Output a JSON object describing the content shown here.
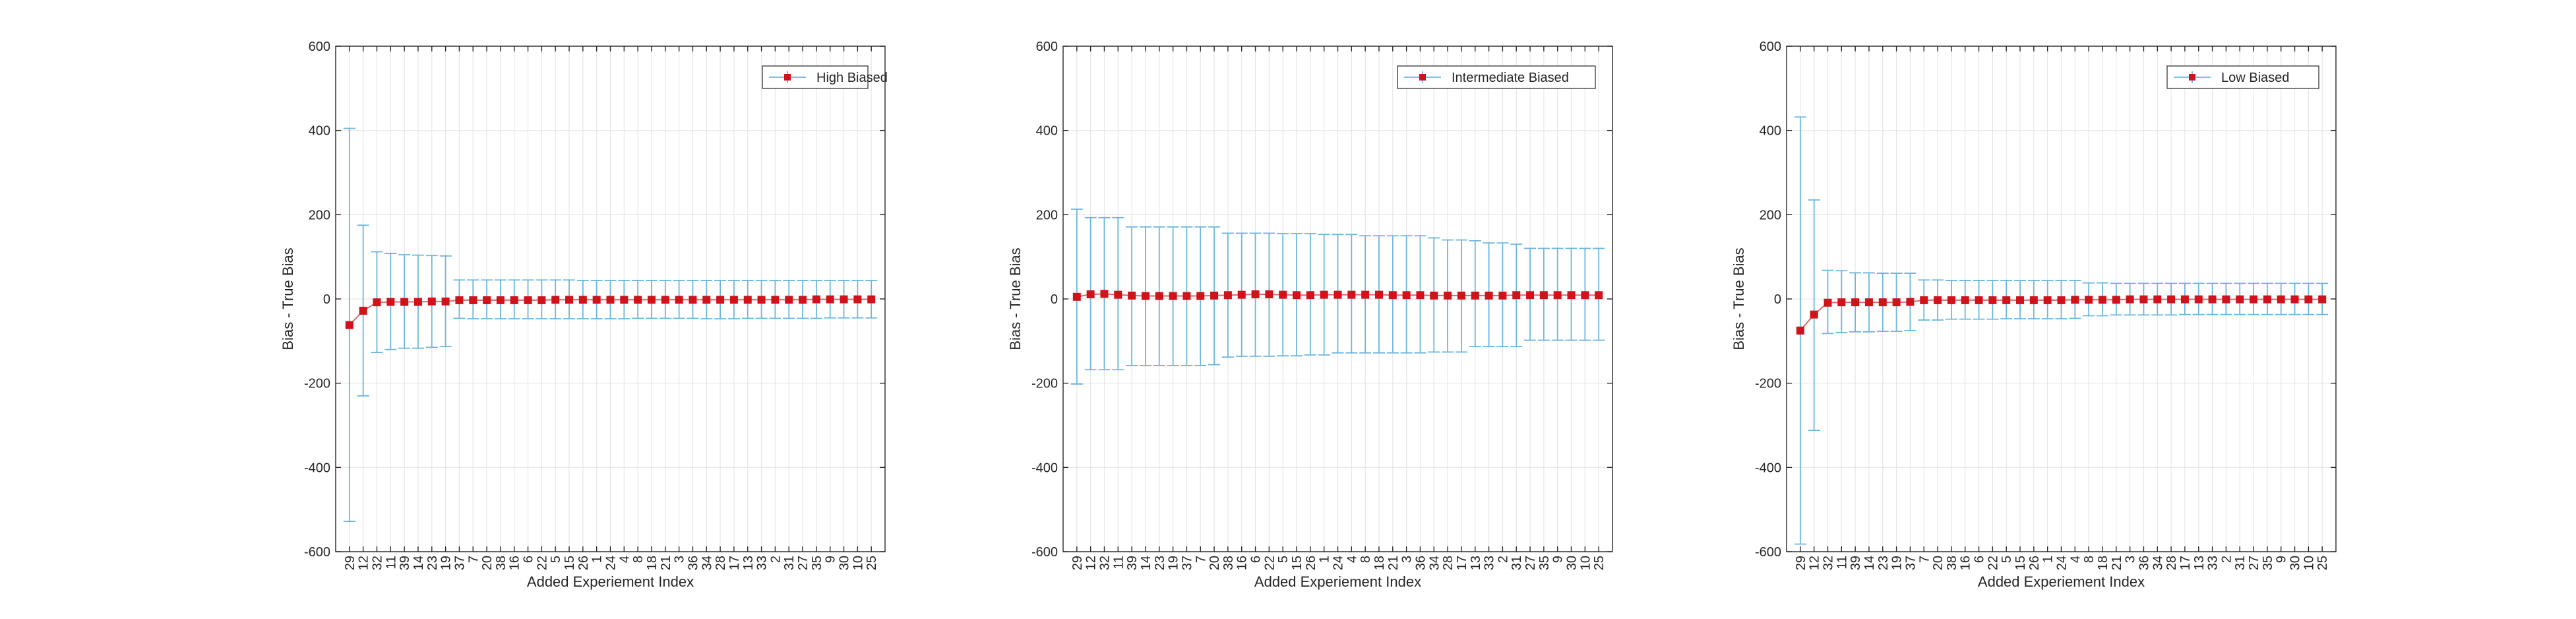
{
  "figure": {
    "ytick_labels": [
      "-600",
      "-400",
      "-200",
      "0",
      "200",
      "400",
      "600"
    ]
  },
  "chart_data": [
    {
      "type": "line",
      "title": "",
      "xlabel": "Added Experiement Index",
      "ylabel": "Bias - True Bias",
      "ylim": [
        -600,
        600
      ],
      "yticks": [
        -600,
        -400,
        -200,
        0,
        200,
        400,
        600
      ],
      "grid": true,
      "legend_position": "top-right",
      "categories": [
        "29",
        "12",
        "32",
        "11",
        "39",
        "14",
        "23",
        "19",
        "37",
        "7",
        "20",
        "38",
        "16",
        "6",
        "22",
        "5",
        "15",
        "26",
        "1",
        "24",
        "4",
        "8",
        "18",
        "21",
        "3",
        "36",
        "34",
        "28",
        "17",
        "13",
        "33",
        "2",
        "31",
        "27",
        "35",
        "9",
        "30",
        "10",
        "25"
      ],
      "series": [
        {
          "name": "High Biased",
          "color": "#d0121b",
          "errorbar_color": "#6cb6df",
          "values": [
            -62,
            -28,
            -8,
            -7,
            -7,
            -7,
            -6,
            -6,
            -3,
            -3,
            -3,
            -3,
            -3,
            -3,
            -3,
            -2,
            -2,
            -2,
            -2,
            -2,
            -2,
            -2,
            -2,
            -2,
            -2,
            -2,
            -2,
            -2,
            -2,
            -2,
            -2,
            -2,
            -2,
            -2,
            -1,
            -1,
            -1,
            -1,
            -1
          ],
          "lower": [
            -528,
            -230,
            -127,
            -120,
            -117,
            -117,
            -115,
            -113,
            -46,
            -47,
            -47,
            -47,
            -47,
            -47,
            -47,
            -47,
            -47,
            -47,
            -47,
            -47,
            -47,
            -46,
            -46,
            -46,
            -46,
            -46,
            -47,
            -47,
            -47,
            -46,
            -46,
            -46,
            -46,
            -46,
            -46,
            -45,
            -45,
            -45,
            -45
          ],
          "upper": [
            405,
            175,
            112,
            108,
            105,
            104,
            103,
            102,
            45,
            45,
            45,
            45,
            45,
            45,
            45,
            45,
            45,
            44,
            44,
            44,
            44,
            44,
            44,
            44,
            44,
            44,
            44,
            44,
            44,
            44,
            44,
            44,
            44,
            44,
            44,
            44,
            44,
            44,
            44
          ]
        }
      ]
    },
    {
      "type": "line",
      "title": "",
      "xlabel": "Added Experiement Index",
      "ylabel": "Bias - True Bias",
      "ylim": [
        -600,
        600
      ],
      "yticks": [
        -600,
        -400,
        -200,
        0,
        200,
        400,
        600
      ],
      "grid": true,
      "legend_position": "top-right",
      "categories": [
        "29",
        "12",
        "32",
        "11",
        "39",
        "14",
        "23",
        "19",
        "37",
        "7",
        "20",
        "38",
        "16",
        "6",
        "22",
        "5",
        "15",
        "26",
        "1",
        "24",
        "4",
        "8",
        "18",
        "21",
        "3",
        "36",
        "34",
        "28",
        "17",
        "13",
        "33",
        "2",
        "31",
        "27",
        "35",
        "9",
        "30",
        "10",
        "25"
      ],
      "series": [
        {
          "name": "Intermediate Biased",
          "color": "#d0121b",
          "errorbar_color": "#6cb6df",
          "values": [
            5,
            11,
            12,
            10,
            8,
            7,
            7,
            7,
            7,
            7,
            8,
            9,
            10,
            11,
            11,
            10,
            9,
            9,
            10,
            10,
            10,
            10,
            10,
            9,
            9,
            9,
            8,
            8,
            8,
            8,
            8,
            8,
            9,
            9,
            9,
            9,
            9,
            9,
            9
          ],
          "lower": [
            -202,
            -168,
            -168,
            -168,
            -158,
            -158,
            -158,
            -158,
            -158,
            -158,
            -156,
            -138,
            -136,
            -136,
            -136,
            -135,
            -135,
            -133,
            -133,
            -128,
            -128,
            -128,
            -128,
            -128,
            -128,
            -128,
            -126,
            -126,
            -126,
            -113,
            -113,
            -113,
            -113,
            -98,
            -98,
            -98,
            -98,
            -98,
            -98
          ],
          "upper": [
            213,
            193,
            193,
            193,
            171,
            171,
            171,
            171,
            171,
            171,
            171,
            156,
            156,
            156,
            156,
            155,
            155,
            155,
            153,
            153,
            153,
            150,
            150,
            150,
            150,
            150,
            145,
            140,
            140,
            138,
            133,
            133,
            130,
            120,
            120,
            120,
            120,
            120,
            120
          ]
        }
      ]
    },
    {
      "type": "line",
      "title": "",
      "xlabel": "Added Experiement Index",
      "ylabel": "Bias - True Bias",
      "ylim": [
        -600,
        600
      ],
      "yticks": [
        -600,
        -400,
        -200,
        0,
        200,
        400,
        600
      ],
      "grid": true,
      "legend_position": "top-right",
      "categories": [
        "29",
        "12",
        "32",
        "11",
        "39",
        "14",
        "23",
        "19",
        "37",
        "7",
        "20",
        "38",
        "16",
        "6",
        "22",
        "5",
        "15",
        "26",
        "1",
        "24",
        "4",
        "8",
        "18",
        "21",
        "3",
        "36",
        "34",
        "28",
        "17",
        "13",
        "33",
        "2",
        "31",
        "27",
        "35",
        "9",
        "30",
        "10",
        "25"
      ],
      "series": [
        {
          "name": "Low Biased",
          "color": "#d0121b",
          "errorbar_color": "#6cb6df",
          "values": [
            -75,
            -37,
            -9,
            -8,
            -8,
            -8,
            -8,
            -8,
            -7,
            -3,
            -3,
            -3,
            -3,
            -3,
            -3,
            -3,
            -3,
            -3,
            -3,
            -3,
            -2,
            -2,
            -2,
            -2,
            -1,
            -1,
            -1,
            -1,
            -1,
            -1,
            -1,
            -1,
            -1,
            -1,
            -1,
            -1,
            -1,
            -1,
            -1
          ],
          "lower": [
            -582,
            -312,
            -82,
            -80,
            -78,
            -78,
            -77,
            -77,
            -75,
            -50,
            -50,
            -48,
            -48,
            -48,
            -48,
            -47,
            -47,
            -47,
            -47,
            -47,
            -46,
            -40,
            -40,
            -38,
            -38,
            -38,
            -38,
            -38,
            -37,
            -37,
            -37,
            -37,
            -37,
            -37,
            -37,
            -37,
            -37,
            -37,
            -37
          ],
          "upper": [
            432,
            235,
            68,
            67,
            62,
            62,
            61,
            61,
            61,
            45,
            45,
            44,
            44,
            44,
            44,
            44,
            44,
            44,
            44,
            44,
            44,
            38,
            38,
            37,
            37,
            37,
            37,
            37,
            37,
            37,
            37,
            37,
            37,
            37,
            37,
            37,
            37,
            37,
            37
          ]
        }
      ]
    }
  ]
}
